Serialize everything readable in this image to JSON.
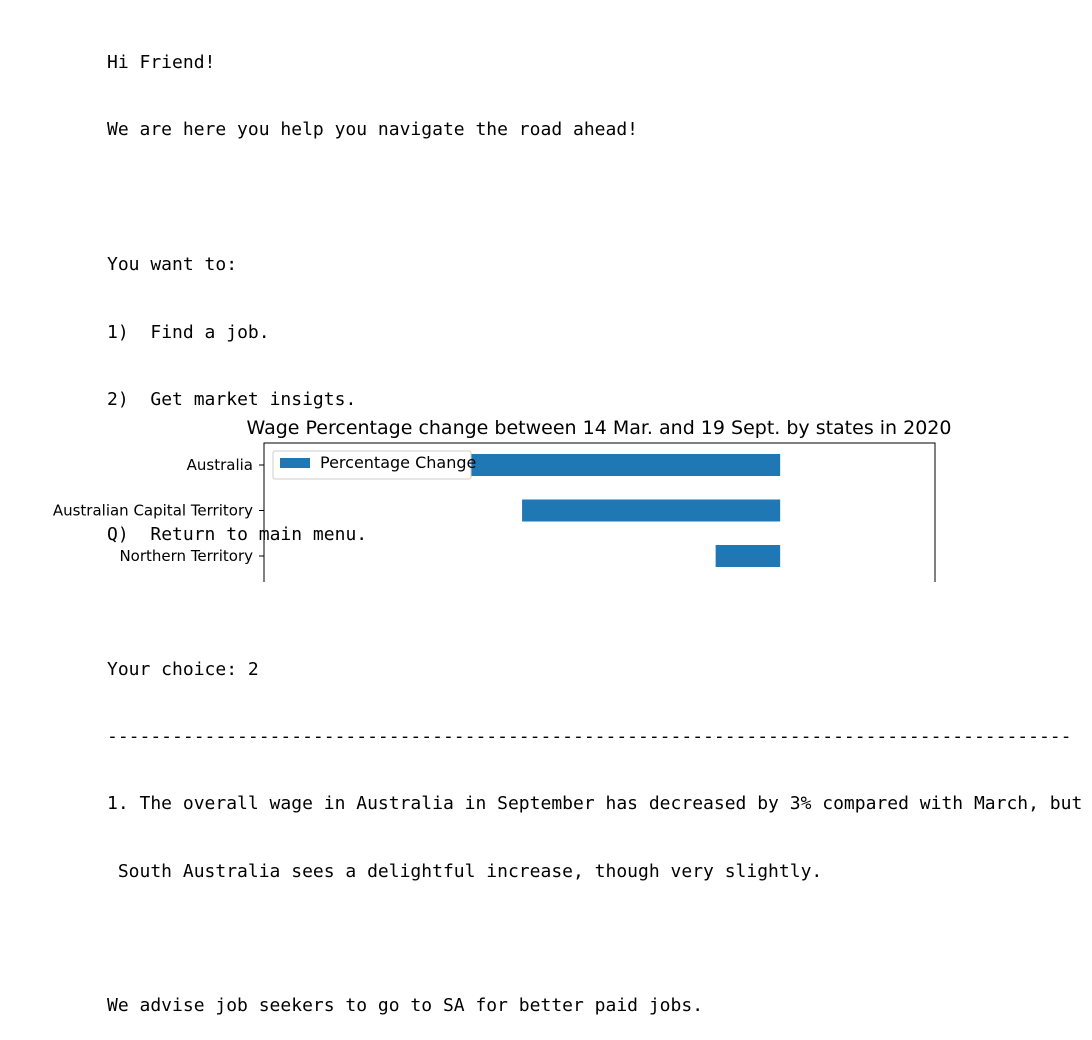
{
  "console": {
    "greeting": "Hi Friend!",
    "intro": "We are here you help you navigate the road ahead!",
    "prompt_header": "You want to:",
    "options": [
      {
        "key": "1)",
        "label": "Find a job."
      },
      {
        "key": "2)",
        "label": "Get market insigts."
      }
    ],
    "quit_option": {
      "key": "Q)",
      "label": "Return to main menu."
    },
    "choice_prompt": "Your choice: ",
    "choice_value": "2",
    "separator": "-------------------------------------------------------------------------------------------",
    "insight_line1": "1. The overall wage in Australia in September has decreased by 3% compared with March, but",
    "insight_line2": " South Australia sees a delightful increase, though very slightly.",
    "advice": "We advise job seekers to go to SA for better paid jobs."
  },
  "chart_data": {
    "type": "bar",
    "orientation": "horizontal",
    "title": "Wage Percentage change between 14 Mar. and 19 Sept. by states in 2020",
    "categories": [
      "Australia",
      "Australian Capital Territory",
      "Northern Territory"
    ],
    "series": [
      {
        "name": "Percentage Change",
        "values": [
          -3.0,
          -2.0,
          -0.5
        ],
        "color": "#1f77b4"
      }
    ],
    "xlim": [
      -4.0,
      1.2
    ],
    "legend": "top-left",
    "grid": false
  }
}
